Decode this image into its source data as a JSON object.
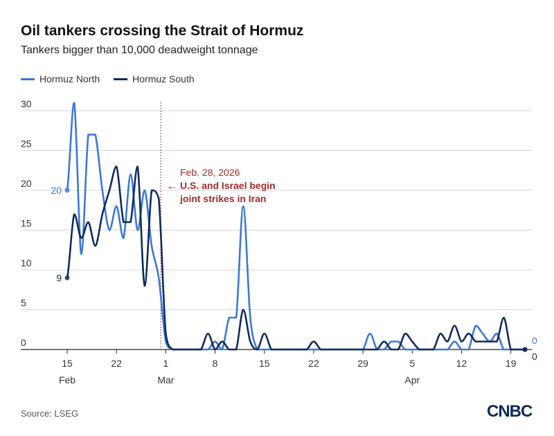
{
  "title": "Oil tankers crossing the Strait of Hormuz",
  "subtitle": "Tankers bigger than 10,000 deadweight tonnage",
  "source": "Source: LSEG",
  "logo": "CNBC",
  "chart_data": {
    "type": "line",
    "title": "Oil tankers crossing the Strait of Hormuz",
    "xlabel": "",
    "ylabel": "",
    "x_unit": "days since Feb 15, 2026",
    "ylim": [
      0,
      30
    ],
    "y_ticks": [
      0,
      5,
      10,
      15,
      20,
      25,
      30
    ],
    "x_ticks": [
      {
        "day": 0,
        "label": "15",
        "month": "Feb"
      },
      {
        "day": 7,
        "label": "22"
      },
      {
        "day": 14,
        "label": "1",
        "month": "Mar"
      },
      {
        "day": 21,
        "label": "8"
      },
      {
        "day": 28,
        "label": "15"
      },
      {
        "day": 35,
        "label": "22"
      },
      {
        "day": 42,
        "label": "29"
      },
      {
        "day": 49,
        "label": "5",
        "month": "Apr"
      },
      {
        "day": 56,
        "label": "12"
      },
      {
        "day": 63,
        "label": "19"
      }
    ],
    "grid": true,
    "legend_position": "top-left",
    "series": [
      {
        "name": "Hormuz North",
        "color": "#3a78d6",
        "values": [
          20,
          31,
          12,
          27,
          27,
          20,
          15,
          18,
          14,
          22,
          15,
          20,
          13,
          9,
          1,
          0,
          0,
          0,
          0,
          0,
          0,
          1,
          0,
          4,
          4,
          18,
          4,
          0,
          0,
          0,
          0,
          0,
          0,
          0,
          0,
          0,
          0,
          0,
          0,
          0,
          0,
          0,
          0,
          2,
          0,
          0,
          1,
          1,
          0,
          0,
          0,
          0,
          0,
          0,
          0,
          1,
          0,
          0,
          3,
          2,
          1,
          2,
          0,
          0,
          0,
          0
        ],
        "start_label": "20",
        "end_label": "0"
      },
      {
        "name": "Hormuz South",
        "color": "#0f2a5c",
        "values": [
          9,
          17,
          14,
          16,
          13,
          17,
          20,
          23,
          16,
          16,
          23,
          8,
          20,
          19,
          2,
          0,
          0,
          0,
          0,
          0,
          2,
          0,
          1,
          0,
          0,
          5,
          1,
          0,
          2,
          0,
          0,
          0,
          0,
          0,
          0,
          1,
          0,
          0,
          0,
          0,
          0,
          0,
          0,
          0,
          0,
          1,
          0,
          0,
          2,
          1,
          0,
          0,
          0,
          2,
          1,
          3,
          1,
          2,
          1,
          1,
          1,
          1,
          4,
          0,
          0,
          0
        ],
        "start_label": "9",
        "end_label": "0"
      }
    ],
    "annotation": {
      "day": 13.3,
      "date": "Feb. 28, 2026",
      "text_line1": "U.S. and Israel begin",
      "text_line2": "joint strikes in Iran",
      "color": "#a32a2a"
    }
  }
}
